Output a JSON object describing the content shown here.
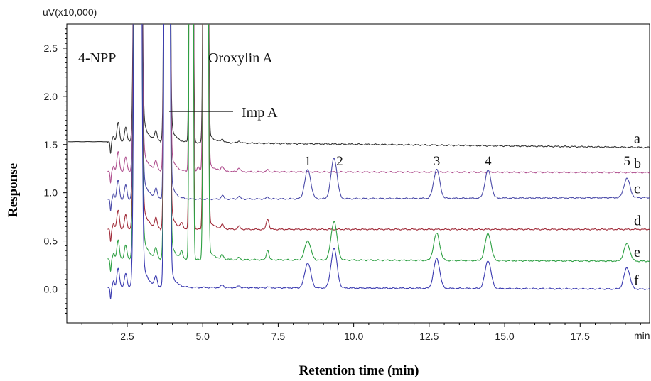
{
  "chart_data": {
    "type": "line",
    "title": "",
    "xlabel": "Retention time (min)",
    "ylabel": "Response",
    "y_unit": "uV(x10,000)",
    "x_unit": "min",
    "xlim": [
      0.5,
      19.8
    ],
    "ylim": [
      -0.35,
      2.75
    ],
    "x_ticks": [
      "2.5",
      "5.0",
      "7.5",
      "10.0",
      "12.5",
      "15.0",
      "17.5"
    ],
    "y_ticks": [
      "0.0",
      "0.5",
      "1.0",
      "1.5",
      "2.0",
      "2.5"
    ],
    "grid": false,
    "annotations": [
      "4-NPP",
      "Oroxylin A",
      "Imp A"
    ],
    "peak_labels": [
      {
        "label": "1",
        "x": 8.48
      },
      {
        "label": "2",
        "x": 9.35
      },
      {
        "label": "3",
        "x": 12.75
      },
      {
        "label": "4",
        "x": 14.45
      },
      {
        "label": "5",
        "x": 19.05
      }
    ],
    "series": [
      {
        "name": "a",
        "color": "#333333",
        "baseline": 1.53,
        "end": 1.47,
        "peaks": [
          [
            2.2,
            0.2
          ],
          [
            2.45,
            0.15
          ],
          [
            3.45,
            0.1
          ],
          [
            5.65,
            0.03
          ],
          [
            6.2,
            0.02
          ]
        ]
      },
      {
        "name": "b",
        "color": "#b0508f",
        "baseline": 1.22,
        "end": 1.21,
        "peaks": [
          [
            2.2,
            0.2
          ],
          [
            2.45,
            0.15
          ],
          [
            3.45,
            0.1
          ],
          [
            4.85,
            0.05
          ],
          [
            5.65,
            0.05
          ],
          [
            6.2,
            0.04
          ],
          [
            7.15,
            0.02
          ]
        ]
      },
      {
        "name": "c",
        "color": "#4a4aa8",
        "baseline": 0.93,
        "end": 0.95,
        "peaks": [
          [
            2.2,
            0.2
          ],
          [
            2.45,
            0.15
          ],
          [
            3.45,
            0.1
          ],
          [
            5.65,
            0.04
          ],
          [
            6.2,
            0.03
          ],
          [
            7.15,
            0.02
          ],
          [
            8.48,
            0.3
          ],
          [
            9.35,
            0.42
          ],
          [
            12.75,
            0.3
          ],
          [
            14.45,
            0.29
          ],
          [
            19.05,
            0.2
          ]
        ]
      },
      {
        "name": "d",
        "color": "#a02a38",
        "baseline": 0.62,
        "end": 0.62,
        "peaks": [
          [
            2.2,
            0.2
          ],
          [
            2.45,
            0.15
          ],
          [
            3.45,
            0.1
          ],
          [
            4.3,
            0.05
          ],
          [
            5.65,
            0.04
          ],
          [
            6.2,
            0.03
          ],
          [
            7.15,
            0.11
          ]
        ]
      },
      {
        "name": "e",
        "color": "#2ea043",
        "baseline": 0.31,
        "end": 0.29,
        "peaks": [
          [
            2.2,
            0.2
          ],
          [
            2.45,
            0.15
          ],
          [
            3.45,
            0.1
          ],
          [
            4.3,
            0.07
          ],
          [
            5.65,
            0.04
          ],
          [
            6.2,
            0.02
          ],
          [
            7.15,
            0.1
          ],
          [
            8.48,
            0.2
          ],
          [
            9.35,
            0.4
          ],
          [
            12.75,
            0.28
          ],
          [
            14.45,
            0.28
          ],
          [
            19.05,
            0.18
          ]
        ]
      },
      {
        "name": "f",
        "color": "#3a3ab0",
        "baseline": 0.02,
        "end": 0.0,
        "peaks": [
          [
            2.2,
            0.2
          ],
          [
            2.45,
            0.15
          ],
          [
            3.45,
            0.1
          ],
          [
            5.65,
            0.03
          ],
          [
            6.2,
            0.02
          ],
          [
            7.15,
            0.01
          ],
          [
            8.48,
            0.26
          ],
          [
            9.35,
            0.41
          ],
          [
            12.75,
            0.31
          ],
          [
            14.45,
            0.29
          ],
          [
            19.05,
            0.22
          ]
        ]
      }
    ]
  }
}
